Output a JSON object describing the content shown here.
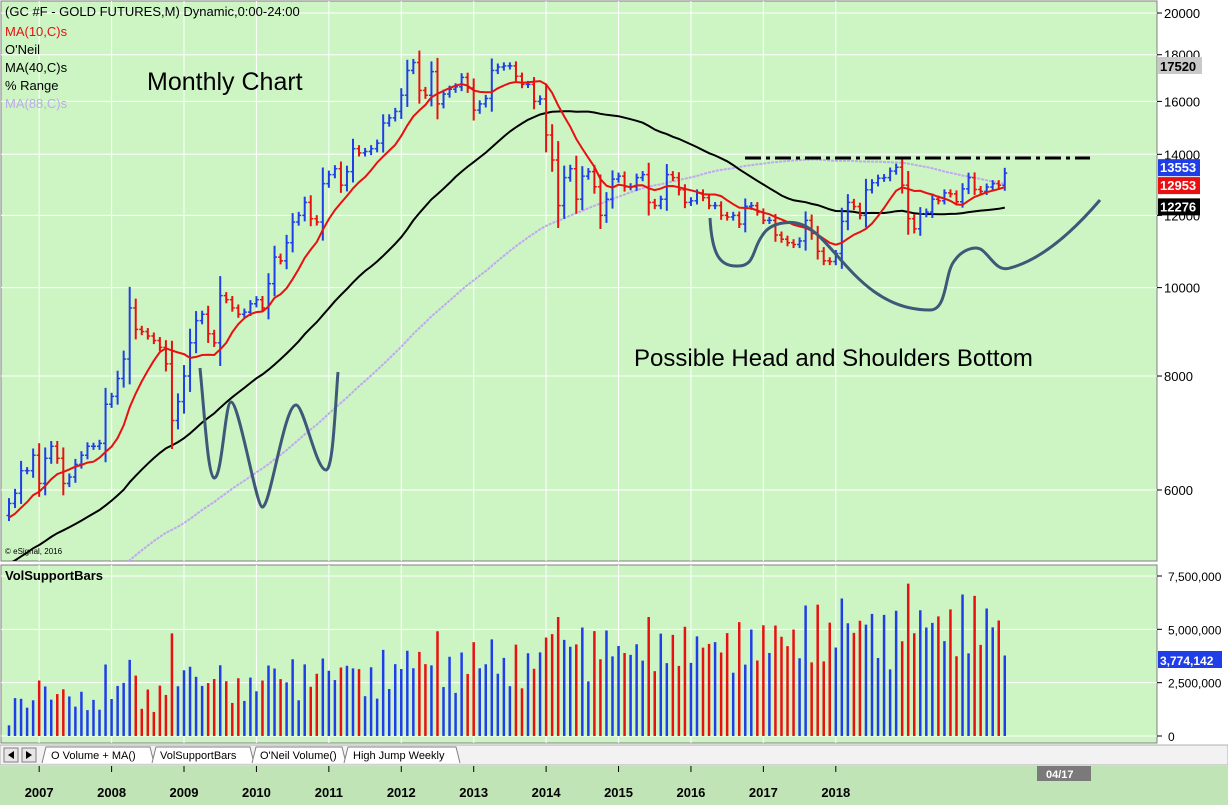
{
  "header": {
    "symbol_line": "(GC #F - GOLD FUTURES,M) Dynamic,0:00-24:00",
    "studies": [
      {
        "label": "MA(10,C)s",
        "color": "#e81010"
      },
      {
        "label": "O'Neil",
        "color": "#000000"
      },
      {
        "label": "MA(40,C)s",
        "color": "#000000"
      },
      {
        "label": "% Range",
        "color": "#000000"
      },
      {
        "label": "MA(88,C)s",
        "color": "#c0a8f0"
      }
    ]
  },
  "annotations": {
    "monthly": "Monthly Chart",
    "pattern": "Possible Head and Shoulders Bottom",
    "copyright": "© eSignal, 2016"
  },
  "price_axis": {
    "ticks": [
      6000,
      8000,
      10000,
      12000,
      14000,
      16000,
      18000,
      20000
    ],
    "last_price_box": "17520",
    "value_boxes": [
      {
        "text": "13553",
        "value": 13553,
        "bg": "#1f3ee8",
        "fg": "#ffffff"
      },
      {
        "text": "12953",
        "value": 12953,
        "bg": "#e81010",
        "fg": "#ffffff"
      },
      {
        "text": "12276",
        "value": 12276,
        "bg": "#000000",
        "fg": "#ffffff"
      }
    ]
  },
  "volume": {
    "panel_title": "VolSupportBars",
    "ticks": [
      "0",
      "2,500,000",
      "5,000,000",
      "7,500,000"
    ],
    "tick_values": [
      0,
      2500000,
      5000000,
      7500000
    ],
    "last_box": "3,774,142",
    "last_value": 3774142
  },
  "tabs": [
    {
      "label": "O Volume + MA()"
    },
    {
      "label": "VolSupportBars"
    },
    {
      "label": "O'Neil Volume()"
    },
    {
      "label": "High Jump Weekly"
    }
  ],
  "time_axis": {
    "years": [
      "2007",
      "2008",
      "2009",
      "2010",
      "2011",
      "2012",
      "2013",
      "2014",
      "2015",
      "2016",
      "2017",
      "2018"
    ],
    "cursor_label": "04/17"
  },
  "colors": {
    "up": "#1f3ee8",
    "down": "#e81010",
    "bg": "#cdf5c4",
    "grid": "#ffffff"
  },
  "chart_data": {
    "type": "bar",
    "start": "2006-08",
    "interval": "monthly",
    "scale": "log",
    "ylim": [
      4500,
      20000
    ],
    "close": [
      5800,
      5950,
      6300,
      6300,
      6550,
      6100,
      6500,
      6700,
      6500,
      6100,
      6200,
      6400,
      6550,
      6700,
      6700,
      6750,
      7450,
      7600,
      7950,
      8350,
      9500,
      9000,
      8950,
      8850,
      8750,
      8600,
      8250,
      7150,
      7500,
      8000,
      8700,
      9200,
      9350,
      8900,
      8700,
      9800,
      9700,
      9500,
      9350,
      9400,
      9600,
      9700,
      9500,
      10100,
      10800,
      10700,
      11200,
      11800,
      12000,
      12400,
      11900,
      11800,
      13000,
      13300,
      13500,
      12950,
      13400,
      14200,
      14050,
      14100,
      14200,
      14400,
      15150,
      15350,
      15600,
      16250,
      17300,
      17650,
      16450,
      16250,
      17250,
      15900,
      16300,
      16500,
      16600,
      17000,
      16550,
      15650,
      15900,
      16120,
      17300,
      17450,
      17500,
      17500,
      17050,
      16700,
      16700,
      16000,
      16100,
      14700,
      13800,
      12300,
      13200,
      13500,
      12500,
      13250,
      13400,
      12900,
      12000,
      12500,
      13150,
      13250,
      12900,
      12900,
      13200,
      13300,
      12400,
      12300,
      12500,
      13300,
      13200,
      12800,
      12400,
      12450,
      12700,
      12550,
      12300,
      12300,
      12000,
      11950,
      12000,
      11740,
      12280,
      12300,
      12100,
      11850,
      11850,
      11420,
      11300,
      11200,
      11150,
      11250,
      11850,
      11460,
      10960,
      10700,
      10680,
      10900,
      11820,
      12400,
      12270,
      12000,
      12800,
      13030,
      13180,
      13200,
      13420,
      13550,
      12950,
      11900,
      11600,
      12050,
      12100,
      12500,
      12450,
      12700,
      12670,
      12420,
      12830,
      13200,
      12810,
      12750,
      12890,
      13000,
      12950,
      13350
    ]
  }
}
